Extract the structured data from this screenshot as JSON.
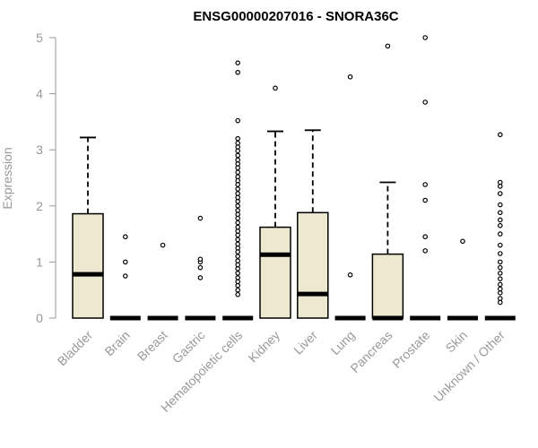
{
  "chart_data": {
    "type": "boxplot",
    "title": "ENSG00000207016 - SNORA36C",
    "xlabel": "",
    "ylabel": "Expression",
    "ylim": [
      0,
      5
    ],
    "yticks": [
      0,
      1,
      2,
      3,
      4,
      5
    ],
    "grid": false,
    "colors": {
      "box_fill": "#ede8d0",
      "box_stroke": "#000000",
      "axis": "#999999",
      "median": "#000000"
    },
    "categories": [
      "Bladder",
      "Brain",
      "Breast",
      "Gastric",
      "Hematopoietic cells",
      "Kidney",
      "Liver",
      "Lung",
      "Pancreas",
      "Prostate",
      "Skin",
      "Unknown / Other"
    ],
    "boxes": [
      {
        "q1": 0,
        "median": 0.78,
        "q3": 1.86,
        "whisker_low": 0,
        "whisker_high": 3.22,
        "outliers": []
      },
      {
        "q1": 0,
        "median": 0,
        "q3": 0,
        "whisker_low": 0,
        "whisker_high": 0,
        "outliers": [
          0.75,
          1.0,
          1.45
        ]
      },
      {
        "q1": 0,
        "median": 0,
        "q3": 0,
        "whisker_low": 0,
        "whisker_high": 0,
        "outliers": [
          1.3
        ]
      },
      {
        "q1": 0,
        "median": 0,
        "q3": 0,
        "whisker_low": 0,
        "whisker_high": 0,
        "outliers": [
          0.72,
          0.9,
          1.0,
          1.05,
          1.78
        ]
      },
      {
        "q1": 0,
        "median": 0,
        "q3": 0,
        "whisker_low": 0,
        "whisker_high": 0,
        "outliers": [
          0.42,
          0.5,
          0.58,
          0.65,
          0.72,
          0.8,
          0.88,
          0.95,
          1.02,
          1.1,
          1.18,
          1.25,
          1.32,
          1.4,
          1.48,
          1.55,
          1.62,
          1.7,
          1.78,
          1.85,
          1.92,
          2.0,
          2.08,
          2.15,
          2.22,
          2.3,
          2.38,
          2.45,
          2.52,
          2.6,
          2.68,
          2.75,
          2.82,
          2.9,
          2.98,
          3.05,
          3.12,
          3.2,
          3.52,
          4.38,
          4.55
        ]
      },
      {
        "q1": 0,
        "median": 1.13,
        "q3": 1.62,
        "whisker_low": 0,
        "whisker_high": 3.33,
        "outliers": [
          4.1
        ]
      },
      {
        "q1": 0,
        "median": 0.43,
        "q3": 1.88,
        "whisker_low": 0,
        "whisker_high": 3.35,
        "outliers": []
      },
      {
        "q1": 0,
        "median": 0,
        "q3": 0,
        "whisker_low": 0,
        "whisker_high": 0,
        "outliers": [
          0.77,
          4.3
        ]
      },
      {
        "q1": 0,
        "median": 0,
        "q3": 1.14,
        "whisker_low": 0,
        "whisker_high": 2.42,
        "outliers": [
          4.85
        ]
      },
      {
        "q1": 0,
        "median": 0,
        "q3": 0,
        "whisker_low": 0,
        "whisker_high": 0,
        "outliers": [
          1.2,
          1.45,
          2.1,
          2.38,
          3.85,
          5.0
        ]
      },
      {
        "q1": 0,
        "median": 0,
        "q3": 0,
        "whisker_low": 0,
        "whisker_high": 0,
        "outliers": [
          1.37
        ]
      },
      {
        "q1": 0,
        "median": 0,
        "q3": 0,
        "whisker_low": 0,
        "whisker_high": 0,
        "outliers": [
          0.28,
          0.35,
          0.45,
          0.52,
          0.6,
          0.7,
          0.8,
          0.9,
          1.0,
          1.15,
          1.3,
          1.5,
          1.65,
          1.75,
          1.88,
          2.02,
          2.22,
          2.35,
          2.42,
          3.27
        ]
      }
    ]
  }
}
